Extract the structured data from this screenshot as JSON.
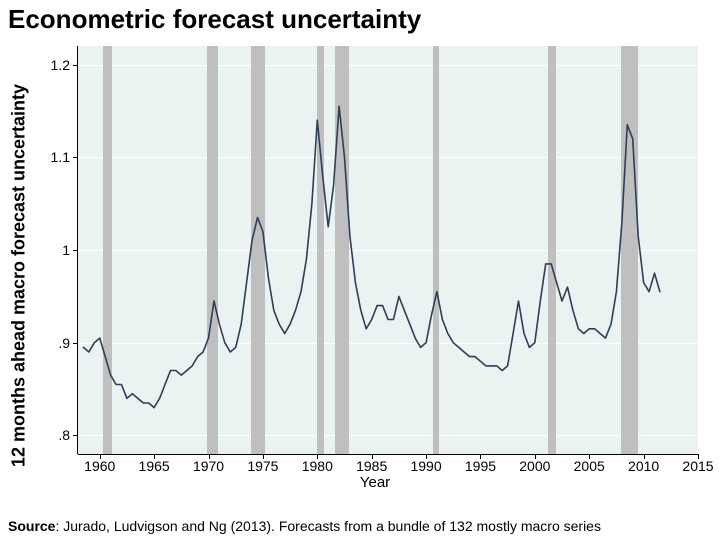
{
  "title": "Econometric forecast uncertainty",
  "ylabel": "12 months ahead macro forecast uncertainty",
  "xlabel": "Year",
  "source_prefix": "Source",
  "source_text": ": Jurado, Ludvigson and Ng (2013). Forecasts from a bundle of 132 mostly macro series",
  "chart": {
    "type": "line",
    "xlim": [
      1958,
      2015
    ],
    "ylim": [
      0.78,
      1.22
    ],
    "xticks": [
      1960,
      1965,
      1970,
      1975,
      1980,
      1985,
      1990,
      1995,
      2000,
      2005,
      2010,
      2015
    ],
    "yticks": [
      0.8,
      0.9,
      1.0,
      1.1,
      1.2
    ],
    "ytick_labels": [
      ".8",
      ".9",
      "1",
      "1.1",
      "1.2"
    ],
    "background_color": "#eaf2f2",
    "grid_color": "#ffffff",
    "axis_color": "#000000",
    "line_color": "#2f3e57",
    "line_width": 1.6,
    "band_color": "#bfbfbf",
    "title_fontsize": 26,
    "ylabel_fontsize": 18,
    "tick_fontsize": 14,
    "source_fontsize": 14,
    "recession_bands": [
      [
        1960.3,
        1961.1
      ],
      [
        1969.9,
        1970.9
      ],
      [
        1973.9,
        1975.2
      ],
      [
        1980.0,
        1980.6
      ],
      [
        1981.6,
        1982.9
      ],
      [
        1990.6,
        1991.2
      ],
      [
        2001.2,
        2001.9
      ],
      [
        2007.9,
        2009.5
      ]
    ],
    "series": {
      "x": [
        1958.5,
        1959,
        1959.5,
        1960,
        1960.5,
        1961,
        1961.5,
        1962,
        1962.5,
        1963,
        1963.5,
        1964,
        1964.5,
        1965,
        1965.5,
        1966,
        1966.5,
        1967,
        1967.5,
        1968,
        1968.5,
        1969,
        1969.5,
        1970,
        1970.5,
        1971,
        1971.5,
        1972,
        1972.5,
        1973,
        1973.5,
        1974,
        1974.5,
        1975,
        1975.5,
        1976,
        1976.5,
        1977,
        1977.5,
        1978,
        1978.5,
        1979,
        1979.5,
        1980,
        1980.5,
        1981,
        1981.5,
        1982,
        1982.5,
        1983,
        1983.5,
        1984,
        1984.5,
        1985,
        1985.5,
        1986,
        1986.5,
        1987,
        1987.5,
        1988,
        1988.5,
        1989,
        1989.5,
        1990,
        1990.5,
        1991,
        1991.5,
        1992,
        1992.5,
        1993,
        1993.5,
        1994,
        1994.5,
        1995,
        1995.5,
        1996,
        1996.5,
        1997,
        1997.5,
        1998,
        1998.5,
        1999,
        1999.5,
        2000,
        2000.5,
        2001,
        2001.5,
        2002,
        2002.5,
        2003,
        2003.5,
        2004,
        2004.5,
        2005,
        2005.5,
        2006,
        2006.5,
        2007,
        2007.5,
        2008,
        2008.5,
        2009,
        2009.5,
        2010,
        2010.5,
        2011,
        2011.5
      ],
      "y": [
        0.895,
        0.89,
        0.9,
        0.905,
        0.885,
        0.865,
        0.855,
        0.855,
        0.84,
        0.845,
        0.84,
        0.835,
        0.835,
        0.83,
        0.84,
        0.855,
        0.87,
        0.87,
        0.865,
        0.87,
        0.875,
        0.885,
        0.89,
        0.905,
        0.945,
        0.92,
        0.9,
        0.89,
        0.895,
        0.92,
        0.965,
        1.01,
        1.035,
        1.02,
        0.97,
        0.935,
        0.92,
        0.91,
        0.92,
        0.935,
        0.955,
        0.99,
        1.05,
        1.14,
        1.08,
        1.025,
        1.07,
        1.155,
        1.1,
        1.015,
        0.965,
        0.935,
        0.915,
        0.925,
        0.94,
        0.94,
        0.925,
        0.925,
        0.95,
        0.935,
        0.92,
        0.905,
        0.895,
        0.9,
        0.93,
        0.955,
        0.925,
        0.91,
        0.9,
        0.895,
        0.89,
        0.885,
        0.885,
        0.88,
        0.875,
        0.875,
        0.875,
        0.87,
        0.875,
        0.91,
        0.945,
        0.91,
        0.895,
        0.9,
        0.945,
        0.985,
        0.985,
        0.965,
        0.945,
        0.96,
        0.935,
        0.915,
        0.91,
        0.915,
        0.915,
        0.91,
        0.905,
        0.92,
        0.955,
        1.03,
        1.135,
        1.12,
        1.015,
        0.965,
        0.955,
        0.975,
        0.955
      ]
    }
  }
}
